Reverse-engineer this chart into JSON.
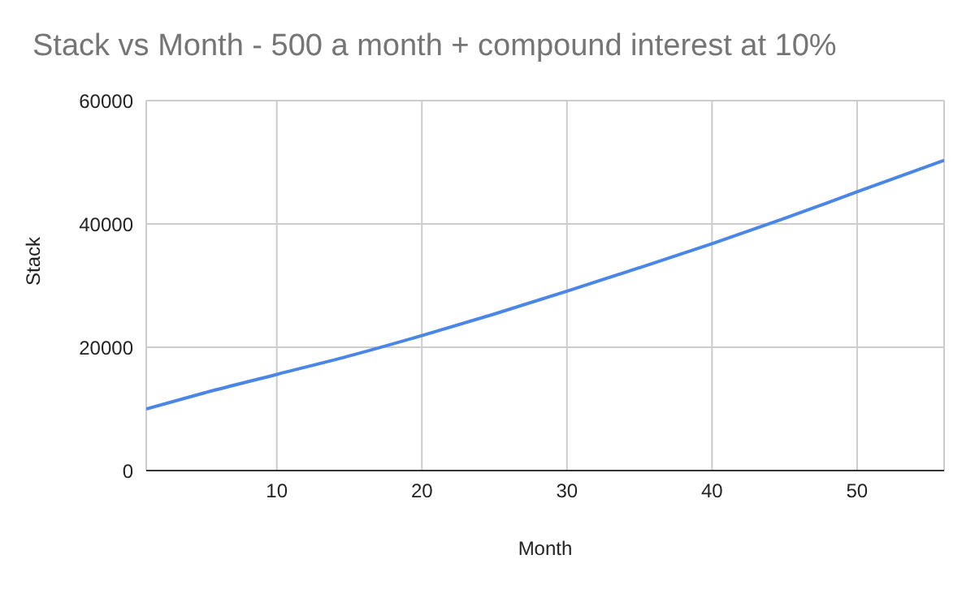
{
  "chart_data": {
    "type": "line",
    "title": "Stack vs Month - 500 a month + compound interest at 10%",
    "xlabel": "Month",
    "ylabel": "Stack",
    "x": [
      1,
      5,
      10,
      15,
      20,
      25,
      30,
      35,
      40,
      45,
      50,
      56
    ],
    "series": [
      {
        "color": "#4a86e8",
        "values": [
          10000,
          12600,
          15600,
          18600,
          21900,
          25400,
          29100,
          32900,
          36800,
          40900,
          45200,
          50300
        ]
      }
    ],
    "xlim": [
      1,
      56
    ],
    "xticks": [
      10,
      20,
      30,
      40,
      50
    ],
    "ylim": [
      0,
      60000
    ],
    "yticks": [
      0,
      20000,
      40000,
      60000
    ],
    "grid": true,
    "legend": false,
    "marker": "none",
    "line_style": "solid"
  }
}
